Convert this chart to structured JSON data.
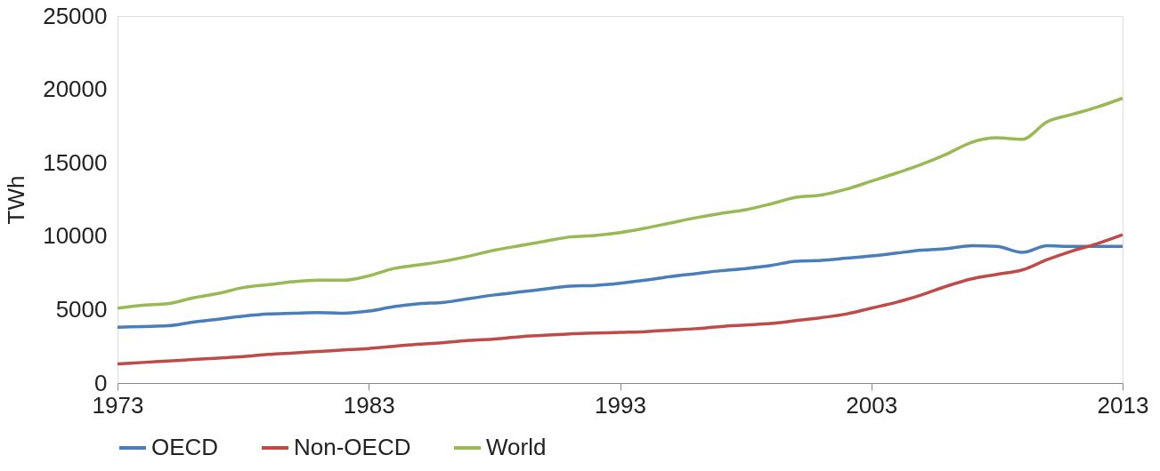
{
  "chart_data": {
    "type": "line",
    "ylabel": "TWh",
    "x": [
      1973,
      1974,
      1975,
      1976,
      1977,
      1978,
      1979,
      1980,
      1981,
      1982,
      1983,
      1984,
      1985,
      1986,
      1987,
      1988,
      1989,
      1990,
      1991,
      1992,
      1993,
      1994,
      1995,
      1996,
      1997,
      1998,
      1999,
      2000,
      2001,
      2002,
      2003,
      2004,
      2005,
      2006,
      2007,
      2008,
      2009,
      2010,
      2011,
      2012,
      2013
    ],
    "series": [
      {
        "name": "OECD",
        "color": "#4a7ebb",
        "values": [
          3800,
          3850,
          3900,
          4150,
          4350,
          4550,
          4700,
          4750,
          4800,
          4750,
          4900,
          5200,
          5400,
          5500,
          5750,
          6000,
          6200,
          6400,
          6600,
          6650,
          6800,
          7000,
          7250,
          7450,
          7650,
          7800,
          8000,
          8300,
          8350,
          8500,
          8650,
          8850,
          9050,
          9150,
          9350,
          9300,
          8900,
          9350,
          9300,
          9300,
          9300
        ]
      },
      {
        "name": "Non-OECD",
        "color": "#be4b48",
        "values": [
          1300,
          1400,
          1500,
          1600,
          1700,
          1800,
          1950,
          2050,
          2150,
          2250,
          2350,
          2500,
          2650,
          2750,
          2900,
          3000,
          3150,
          3250,
          3350,
          3400,
          3450,
          3500,
          3600,
          3700,
          3850,
          3950,
          4050,
          4250,
          4450,
          4700,
          5100,
          5500,
          6000,
          6600,
          7100,
          7400,
          7700,
          8400,
          9000,
          9500,
          10100
        ]
      },
      {
        "name": "World",
        "color": "#98b954",
        "values": [
          5100,
          5300,
          5400,
          5800,
          6100,
          6500,
          6700,
          6900,
          7000,
          7000,
          7300,
          7800,
          8050,
          8300,
          8650,
          9050,
          9350,
          9650,
          9950,
          10050,
          10250,
          10550,
          10900,
          11250,
          11550,
          11800,
          12200,
          12650,
          12800,
          13200,
          13750,
          14300,
          14900,
          15600,
          16400,
          16700,
          16600,
          17800,
          18300,
          18800,
          19400
        ]
      }
    ],
    "xlim": [
      1973,
      2013
    ],
    "xticks": [
      1973,
      1983,
      1993,
      2003,
      2013
    ],
    "ylim": [
      0,
      25000
    ],
    "yticks": [
      0,
      5000,
      10000,
      15000,
      20000,
      25000
    ],
    "grid": false,
    "legend": "bottom",
    "marker": "none",
    "line_style": "solid"
  }
}
